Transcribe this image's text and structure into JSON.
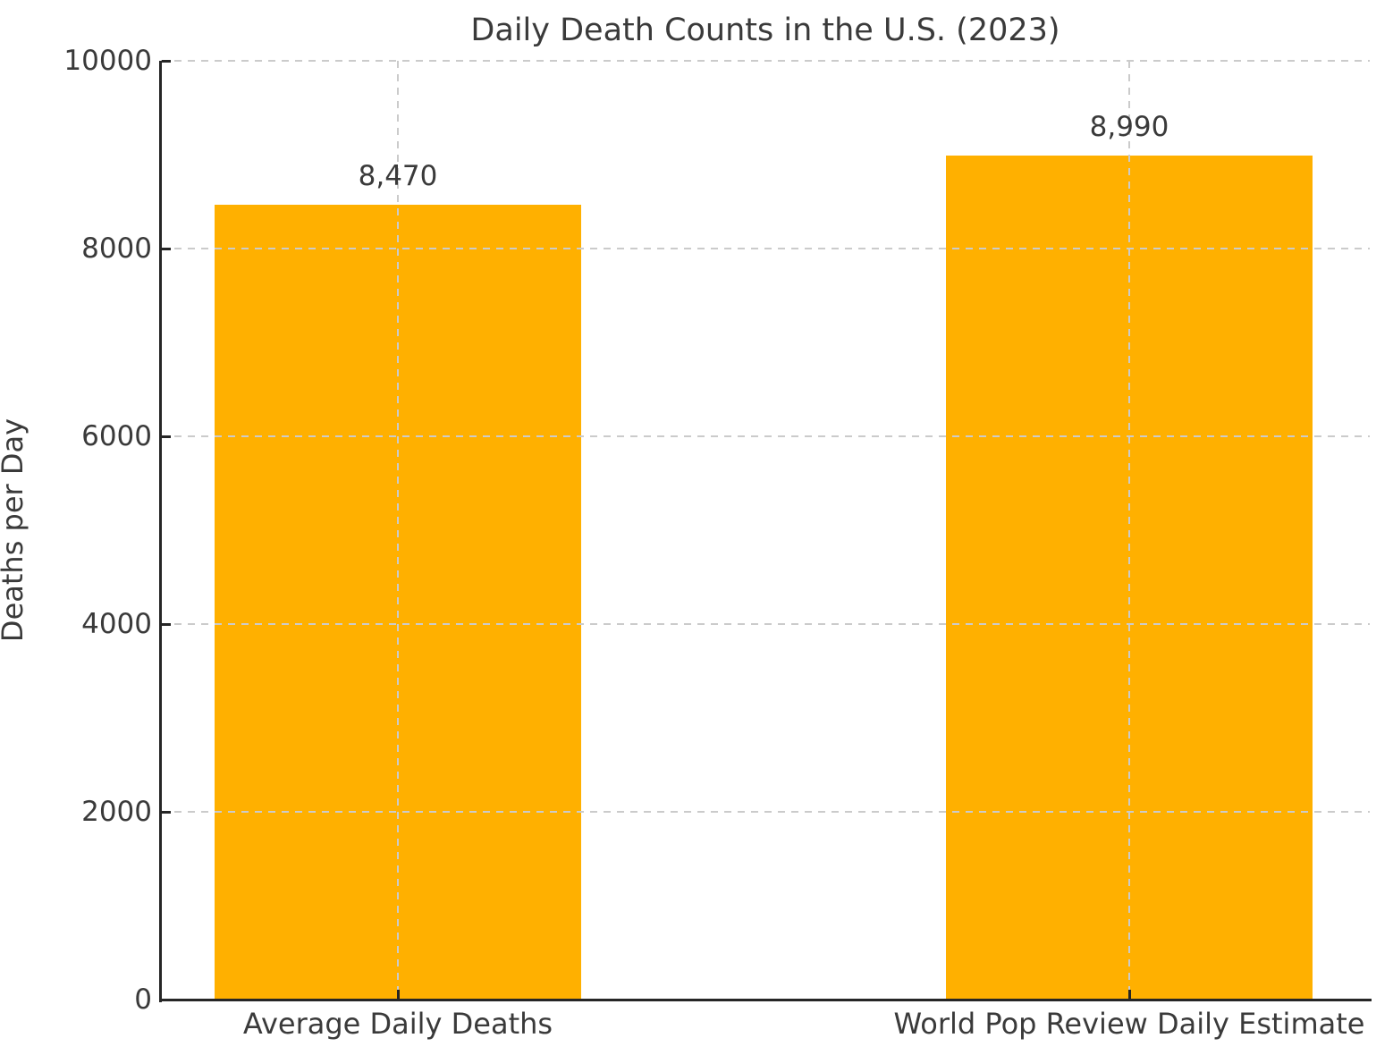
{
  "chart_data": {
    "type": "bar",
    "title": "Daily Death Counts in the U.S. (2023)",
    "xlabel": "",
    "ylabel": "Deaths per Day",
    "categories": [
      "Average Daily Deaths",
      "World Pop Review Daily Estimate"
    ],
    "values": [
      8470,
      8990
    ],
    "value_labels": [
      "8,470",
      "8,990"
    ],
    "ylim": [
      0,
      10000
    ],
    "yticks": [
      0,
      2000,
      4000,
      6000,
      8000,
      10000
    ],
    "ytick_labels": [
      "0",
      "2000",
      "4000",
      "6000",
      "8000",
      "10000"
    ],
    "grid": "dashed gray, horizontal and vertical, drawn above bars",
    "legend": "none",
    "colors": {
      "bar": "#FFB000",
      "text": "#3a3a3a",
      "spine": "#262626",
      "grid": "#cbcbcb",
      "background": "#ffffff"
    }
  }
}
